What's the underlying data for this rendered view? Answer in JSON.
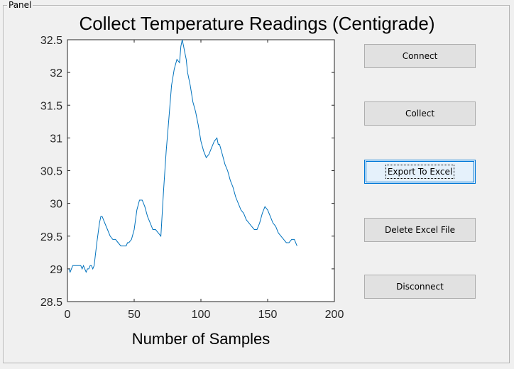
{
  "panel": {
    "title": "Panel"
  },
  "chart_data": {
    "type": "line",
    "title": "Collect Temperature Readings (Centigrade)",
    "xlabel": "Number of Samples",
    "ylabel": "",
    "xlim": [
      0,
      200
    ],
    "ylim": [
      28.5,
      32.5
    ],
    "xticks": [
      0,
      50,
      100,
      150,
      200
    ],
    "xtick_labels": [
      "0",
      "50",
      "100",
      "150",
      "200"
    ],
    "yticks": [
      28.5,
      29,
      29.5,
      30,
      30.5,
      31,
      31.5,
      32,
      32.5
    ],
    "ytick_labels": [
      "28.5",
      "29",
      "29.5",
      "30",
      "30.5",
      "31",
      "31.5",
      "32",
      "32.5"
    ],
    "grid": false,
    "color": "#0072bd",
    "series": [
      {
        "x": [
          1,
          2,
          3,
          4,
          5,
          6,
          7,
          8,
          9,
          10,
          11,
          12,
          13,
          14,
          15,
          16,
          17,
          18,
          19,
          20,
          22,
          24,
          25,
          26,
          28,
          30,
          32,
          34,
          36,
          38,
          40,
          42,
          44,
          45,
          46,
          48,
          50,
          52,
          54,
          56,
          58,
          60,
          62,
          64,
          66,
          68,
          70,
          72,
          74,
          76,
          78,
          80,
          82,
          84,
          85,
          86,
          87,
          88,
          89,
          90,
          92,
          94,
          96,
          98,
          100,
          102,
          104,
          106,
          108,
          110,
          112,
          113,
          114,
          116,
          118,
          120,
          122,
          124,
          126,
          128,
          130,
          132,
          134,
          136,
          138,
          140,
          142,
          144,
          146,
          148,
          150,
          152,
          153,
          154,
          156,
          158,
          160,
          162,
          164,
          166,
          168,
          170,
          172
        ],
        "y": [
          29.0,
          28.95,
          29.0,
          29.05,
          29.05,
          29.05,
          29.05,
          29.05,
          29.05,
          29.05,
          29.0,
          29.05,
          29.0,
          28.95,
          29.0,
          29.0,
          29.05,
          29.05,
          29.0,
          29.05,
          29.4,
          29.7,
          29.8,
          29.8,
          29.7,
          29.6,
          29.5,
          29.45,
          29.45,
          29.4,
          29.35,
          29.35,
          29.35,
          29.4,
          29.4,
          29.45,
          29.6,
          29.9,
          30.05,
          30.05,
          29.95,
          29.8,
          29.7,
          29.6,
          29.6,
          29.55,
          29.5,
          30.2,
          30.8,
          31.3,
          31.8,
          32.05,
          32.2,
          32.15,
          32.4,
          32.5,
          32.4,
          32.3,
          32.2,
          32.0,
          31.8,
          31.55,
          31.4,
          31.2,
          30.95,
          30.8,
          30.7,
          30.75,
          30.85,
          30.95,
          31.0,
          30.9,
          30.9,
          30.75,
          30.6,
          30.5,
          30.35,
          30.25,
          30.1,
          30.0,
          29.9,
          29.85,
          29.75,
          29.7,
          29.65,
          29.6,
          29.6,
          29.7,
          29.85,
          29.95,
          29.9,
          29.8,
          29.75,
          29.7,
          29.65,
          29.55,
          29.5,
          29.45,
          29.4,
          29.4,
          29.45,
          29.45,
          29.35
        ]
      }
    ]
  },
  "buttons": {
    "connect": "Connect",
    "collect": "Collect",
    "export": "Export To Excel",
    "delete": "Delete Excel File",
    "disconnect": "Disconnect"
  }
}
